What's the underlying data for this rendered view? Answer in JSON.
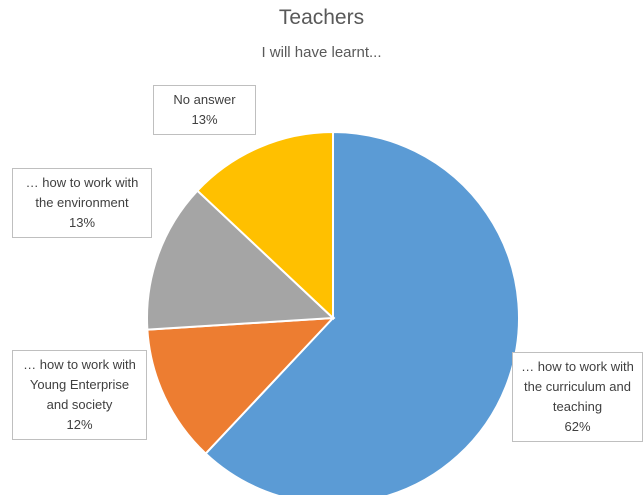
{
  "chart_data": {
    "type": "pie",
    "title": "Teachers",
    "subtitle": "I will have learnt...",
    "categories": [
      "… how to work with the curriculum and teaching",
      "… how to work with Young Enterprise and society",
      "… how to work with the environment",
      "No answer"
    ],
    "values": [
      62,
      12,
      13,
      13
    ],
    "value_labels": [
      "62%",
      "12%",
      "13%",
      "13%"
    ],
    "colors": [
      "#5b9bd5",
      "#ed7d31",
      "#a5a5a5",
      "#ffc000"
    ]
  }
}
